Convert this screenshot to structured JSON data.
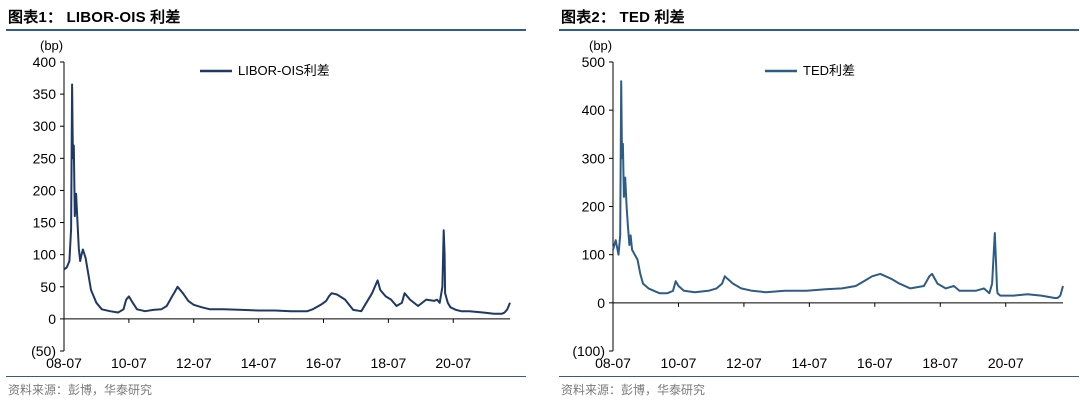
{
  "chart1": {
    "title": "图表1： LIBOR-OIS 利差",
    "source": "资料来源：彭博，华泰研究",
    "colors": {
      "series": "#1f3864",
      "rule": "#2f5d8c"
    },
    "chart_data": {
      "type": "line",
      "title": "图表1： LIBOR-OIS 利差",
      "ylabel": "(bp)",
      "ylim": [
        -50,
        400
      ],
      "yticks": [
        -50,
        0,
        50,
        100,
        150,
        200,
        250,
        300,
        350,
        400
      ],
      "ytick_labels": [
        "(50)",
        "0",
        "50",
        "100",
        "150",
        "200",
        "250",
        "300",
        "350",
        "400"
      ],
      "xlim": [
        "2008-07",
        "2022-04"
      ],
      "xticks": [
        "08-07",
        "10-07",
        "12-07",
        "14-07",
        "16-07",
        "18-07",
        "20-07"
      ],
      "legend": "top-center",
      "grid": false,
      "series": [
        {
          "name": "LIBOR-OIS利差",
          "x": [
            "2008-07",
            "2008-08",
            "2008-09",
            "2008-09-20",
            "2008-10",
            "2008-10-10",
            "2008-10-20",
            "2008-11",
            "2008-11-15",
            "2008-12",
            "2008-12-15",
            "2009-01",
            "2009-01-15",
            "2009-02",
            "2009-03",
            "2009-04",
            "2009-05",
            "2009-06",
            "2009-07",
            "2009-09",
            "2009-12",
            "2010-03",
            "2010-05",
            "2010-06",
            "2010-07",
            "2010-08",
            "2010-10",
            "2011-01",
            "2011-04",
            "2011-07",
            "2011-09",
            "2011-11",
            "2011-12",
            "2012-01",
            "2012-03",
            "2012-05",
            "2012-07",
            "2012-10",
            "2013-01",
            "2013-06",
            "2014-01",
            "2014-07",
            "2015-01",
            "2015-07",
            "2015-10",
            "2016-01",
            "2016-03",
            "2016-06",
            "2016-08",
            "2016-09",
            "2016-10",
            "2016-12",
            "2017-03",
            "2017-06",
            "2017-09",
            "2018-01",
            "2018-03",
            "2018-04",
            "2018-06",
            "2018-08",
            "2018-10",
            "2018-12",
            "2019-01",
            "2019-03",
            "2019-06",
            "2019-09",
            "2019-12",
            "2020-01",
            "2020-02",
            "2020-03",
            "2020-03-15",
            "2020-03-25",
            "2020-04",
            "2020-05",
            "2020-06",
            "2020-08",
            "2020-10",
            "2021-01",
            "2021-06",
            "2021-10",
            "2022-01",
            "2022-02",
            "2022-03",
            "2022-04"
          ],
          "y": [
            77,
            80,
            90,
            140,
            365,
            250,
            270,
            160,
            195,
            150,
            110,
            90,
            100,
            108,
            95,
            70,
            45,
            35,
            25,
            15,
            12,
            10,
            15,
            30,
            35,
            28,
            15,
            12,
            14,
            15,
            20,
            35,
            42,
            50,
            40,
            28,
            22,
            18,
            15,
            15,
            14,
            13,
            13,
            12,
            12,
            12,
            15,
            22,
            28,
            35,
            40,
            38,
            30,
            14,
            12,
            40,
            60,
            45,
            35,
            30,
            20,
            25,
            40,
            30,
            20,
            30,
            28,
            30,
            25,
            50,
            138,
            100,
            40,
            25,
            18,
            14,
            12,
            12,
            10,
            8,
            8,
            10,
            15,
            25
          ]
        }
      ]
    }
  },
  "chart2": {
    "title": "图表2： TED 利差",
    "source": "资料来源：彭博，华泰研究",
    "colors": {
      "series": "#2e5c86",
      "rule": "#2f5d8c"
    },
    "chart_data": {
      "type": "line",
      "title": "图表2： TED 利差",
      "ylabel": "(bp)",
      "ylim": [
        -100,
        500
      ],
      "yticks": [
        -100,
        0,
        100,
        200,
        300,
        400,
        500
      ],
      "ytick_labels": [
        "(100)",
        "0",
        "100",
        "200",
        "300",
        "400",
        "500"
      ],
      "xlim": [
        "2008-07",
        "2022-04"
      ],
      "xticks": [
        "08-07",
        "10-07",
        "12-07",
        "14-07",
        "16-07",
        "18-07",
        "20-07"
      ],
      "legend": "top-center",
      "grid": false,
      "series": [
        {
          "name": "TED利差",
          "x": [
            "2008-07",
            "2008-08",
            "2008-09",
            "2008-09-20",
            "2008-10",
            "2008-10-10",
            "2008-10-20",
            "2008-11",
            "2008-11-15",
            "2008-12",
            "2008-12-15",
            "2009-01",
            "2009-01-15",
            "2009-02",
            "2009-03",
            "2009-04",
            "2009-05",
            "2009-06",
            "2009-08",
            "2009-10",
            "2009-12",
            "2010-03",
            "2010-05",
            "2010-06",
            "2010-07",
            "2010-09",
            "2011-01",
            "2011-06",
            "2011-09",
            "2011-11",
            "2011-12",
            "2012-01",
            "2012-03",
            "2012-06",
            "2012-10",
            "2013-03",
            "2013-10",
            "2014-06",
            "2015-01",
            "2015-07",
            "2015-12",
            "2016-03",
            "2016-06",
            "2016-09",
            "2016-11",
            "2017-01",
            "2017-04",
            "2017-08",
            "2018-01",
            "2018-03",
            "2018-04",
            "2018-06",
            "2018-09",
            "2018-12",
            "2019-02",
            "2019-05",
            "2019-08",
            "2019-11",
            "2020-01",
            "2020-02",
            "2020-03",
            "2020-03-15",
            "2020-03-25",
            "2020-04",
            "2020-05",
            "2020-07",
            "2020-10",
            "2021-03",
            "2021-08",
            "2022-01",
            "2022-02",
            "2022-03",
            "2022-04"
          ],
          "y": [
            110,
            130,
            100,
            140,
            460,
            300,
            330,
            220,
            260,
            200,
            160,
            120,
            140,
            110,
            100,
            90,
            60,
            40,
            30,
            25,
            20,
            20,
            25,
            45,
            35,
            25,
            22,
            25,
            30,
            40,
            55,
            50,
            40,
            30,
            25,
            22,
            25,
            25,
            28,
            30,
            35,
            45,
            55,
            60,
            55,
            50,
            40,
            30,
            35,
            55,
            60,
            40,
            30,
            35,
            25,
            25,
            25,
            30,
            20,
            40,
            145,
            80,
            30,
            20,
            15,
            15,
            15,
            18,
            15,
            10,
            10,
            15,
            35
          ]
        }
      ]
    }
  }
}
